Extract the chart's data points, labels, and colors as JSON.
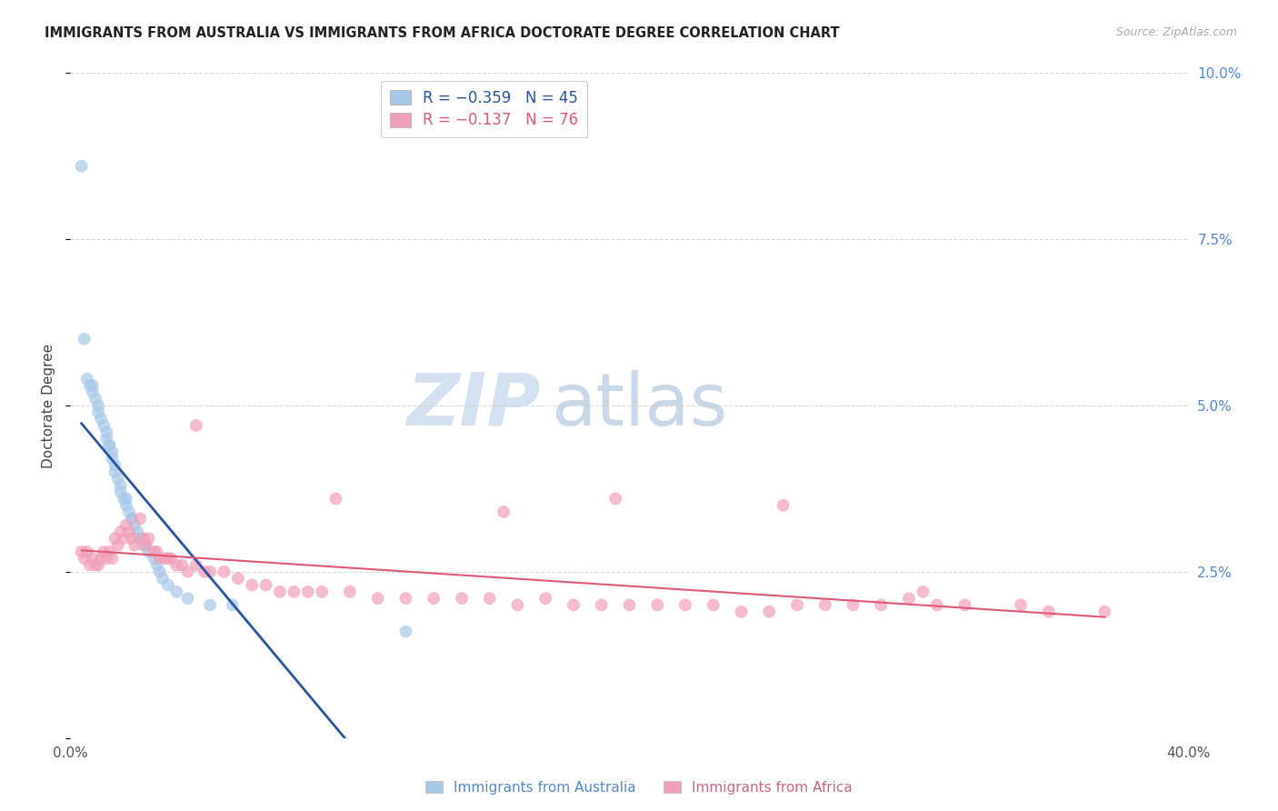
{
  "title": "IMMIGRANTS FROM AUSTRALIA VS IMMIGRANTS FROM AFRICA DOCTORATE DEGREE CORRELATION CHART",
  "source": "Source: ZipAtlas.com",
  "ylabel": "Doctorate Degree",
  "xmin": 0.0,
  "xmax": 0.4,
  "ymin": 0.0,
  "ymax": 0.1,
  "ytick_values": [
    0.0,
    0.025,
    0.05,
    0.075,
    0.1
  ],
  "xtick_values": [
    0.0,
    0.1,
    0.2,
    0.3,
    0.4
  ],
  "color_australia": "#a8c8e8",
  "color_africa": "#f0a0b8",
  "line_color_australia": "#2855a0",
  "line_color_africa": "#e05878",
  "background": "#ffffff",
  "grid_color": "#d0d0d0",
  "australia_x": [
    0.004,
    0.005,
    0.006,
    0.007,
    0.008,
    0.008,
    0.009,
    0.01,
    0.01,
    0.011,
    0.012,
    0.013,
    0.013,
    0.014,
    0.014,
    0.015,
    0.015,
    0.016,
    0.016,
    0.017,
    0.018,
    0.018,
    0.019,
    0.02,
    0.02,
    0.021,
    0.022,
    0.022,
    0.023,
    0.024,
    0.025,
    0.025,
    0.026,
    0.027,
    0.028,
    0.03,
    0.031,
    0.032,
    0.033,
    0.035,
    0.038,
    0.042,
    0.05,
    0.058,
    0.12
  ],
  "australia_y": [
    0.086,
    0.06,
    0.054,
    0.053,
    0.053,
    0.052,
    0.051,
    0.05,
    0.049,
    0.048,
    0.047,
    0.046,
    0.045,
    0.044,
    0.044,
    0.043,
    0.042,
    0.041,
    0.04,
    0.039,
    0.038,
    0.037,
    0.036,
    0.036,
    0.035,
    0.034,
    0.033,
    0.033,
    0.032,
    0.031,
    0.03,
    0.03,
    0.029,
    0.029,
    0.028,
    0.027,
    0.026,
    0.025,
    0.024,
    0.023,
    0.022,
    0.021,
    0.02,
    0.02,
    0.016
  ],
  "africa_x": [
    0.004,
    0.005,
    0.006,
    0.007,
    0.008,
    0.009,
    0.01,
    0.011,
    0.012,
    0.013,
    0.014,
    0.015,
    0.016,
    0.017,
    0.018,
    0.019,
    0.02,
    0.021,
    0.022,
    0.023,
    0.025,
    0.026,
    0.027,
    0.028,
    0.03,
    0.031,
    0.032,
    0.034,
    0.035,
    0.036,
    0.038,
    0.04,
    0.042,
    0.045,
    0.048,
    0.05,
    0.055,
    0.06,
    0.065,
    0.07,
    0.075,
    0.08,
    0.085,
    0.09,
    0.1,
    0.11,
    0.12,
    0.13,
    0.14,
    0.15,
    0.16,
    0.17,
    0.18,
    0.19,
    0.2,
    0.21,
    0.22,
    0.23,
    0.24,
    0.25,
    0.26,
    0.27,
    0.28,
    0.29,
    0.3,
    0.31,
    0.32,
    0.34,
    0.35,
    0.37,
    0.045,
    0.095,
    0.155,
    0.195,
    0.255,
    0.305
  ],
  "africa_y": [
    0.028,
    0.027,
    0.028,
    0.026,
    0.027,
    0.026,
    0.026,
    0.027,
    0.028,
    0.027,
    0.028,
    0.027,
    0.03,
    0.029,
    0.031,
    0.03,
    0.032,
    0.031,
    0.03,
    0.029,
    0.033,
    0.03,
    0.029,
    0.03,
    0.028,
    0.028,
    0.027,
    0.027,
    0.027,
    0.027,
    0.026,
    0.026,
    0.025,
    0.026,
    0.025,
    0.025,
    0.025,
    0.024,
    0.023,
    0.023,
    0.022,
    0.022,
    0.022,
    0.022,
    0.022,
    0.021,
    0.021,
    0.021,
    0.021,
    0.021,
    0.02,
    0.021,
    0.02,
    0.02,
    0.02,
    0.02,
    0.02,
    0.02,
    0.019,
    0.019,
    0.02,
    0.02,
    0.02,
    0.02,
    0.021,
    0.02,
    0.02,
    0.02,
    0.019,
    0.019,
    0.047,
    0.036,
    0.034,
    0.036,
    0.035,
    0.022
  ]
}
